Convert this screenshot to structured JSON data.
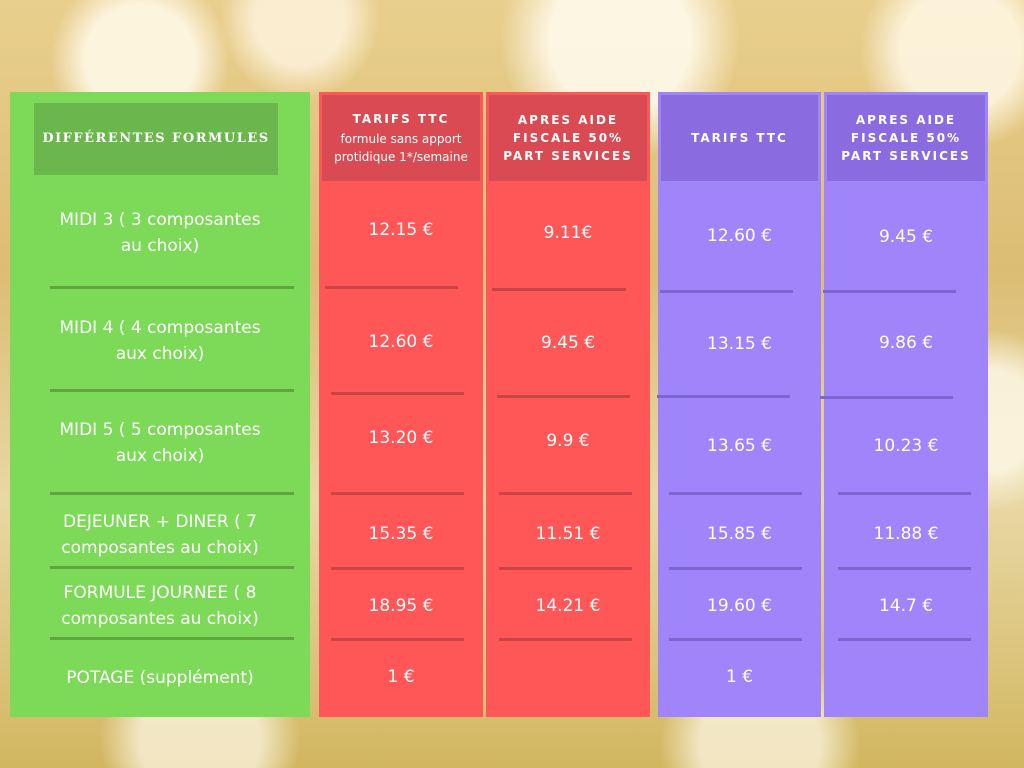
{
  "formulas": {
    "header": "DIFFÉRENTES FORMULES",
    "rows": [
      "MIDI 3 ( 3 composantes au choix)",
      "MIDI 4 ( 4 composantes aux choix)",
      "MIDI 5  ( 5 composantes aux choix)",
      "DEJEUNER + DINER ( 7 composantes au choix)",
      "FORMULE JOURNEE ( 8 composantes au choix)",
      "POTAGE (supplément)"
    ]
  },
  "col_tarifs_sans_protidique": {
    "title": "TARIFS TTC",
    "subtitle": "formule sans apport protidique 1*/semaine",
    "values": [
      "12.15 €",
      "12.60 €",
      "13.20 €",
      "15.35 €",
      "18.95 €",
      "1 €"
    ]
  },
  "col_aide_sans_protidique": {
    "title": "APRES AIDE FISCALE 50% PART SERVICES",
    "values": [
      "9.11€",
      "9.45 €",
      "9.9 €",
      "11.51 €",
      "14.21 €",
      ""
    ]
  },
  "col_tarifs": {
    "title": "TARIFS TTC",
    "values": [
      "12.60 €",
      "13.15 €",
      "13.65 €",
      "15.85 €",
      "19.60 €",
      "1 €"
    ]
  },
  "col_aide": {
    "title": "APRES AIDE FISCALE 50% PART SERVICES",
    "values": [
      "9.45 €",
      "9.86 €",
      "10.23 €",
      "11.88 €",
      "14.7 €",
      ""
    ]
  },
  "colors": {
    "green": "#7dd958",
    "red": "#ff5757",
    "purple": "#a084fa"
  }
}
